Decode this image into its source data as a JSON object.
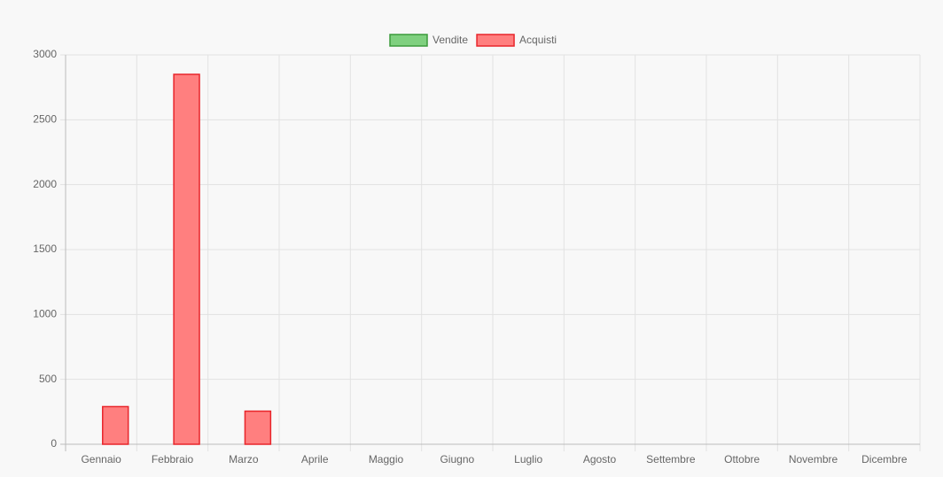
{
  "chart_data": {
    "type": "bar",
    "categories": [
      "Gennaio",
      "Febbraio",
      "Marzo",
      "Aprile",
      "Maggio",
      "Giugno",
      "Luglio",
      "Agosto",
      "Settembre",
      "Ottobre",
      "Novembre",
      "Dicembre"
    ],
    "series": [
      {
        "name": "Vendite",
        "color": "#7fd07f",
        "border_color": "#3c9a3c",
        "values": [
          0,
          0,
          0,
          0,
          0,
          0,
          0,
          0,
          0,
          0,
          0,
          0
        ]
      },
      {
        "name": "Acquisti",
        "color": "#ff7f7f",
        "border_color": "#e8252b",
        "values": [
          290,
          2850,
          255,
          0,
          0,
          0,
          0,
          0,
          0,
          0,
          0,
          0
        ]
      }
    ],
    "ylim": [
      0,
      3000
    ],
    "yticks": [
      0,
      500,
      1000,
      1500,
      2000,
      2500,
      3000
    ],
    "grid": true,
    "legend": "top"
  }
}
